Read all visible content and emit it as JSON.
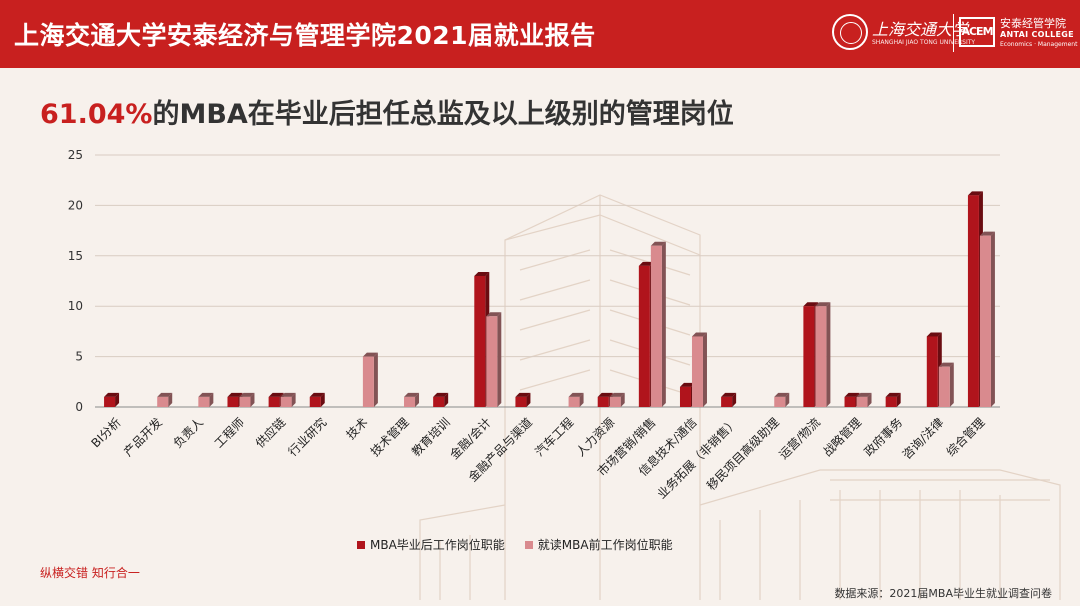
{
  "header": {
    "title": "上海交通大学安泰经济与管理学院2021届就业报告",
    "university_name": "上海交通大学",
    "university_en": "SHANGHAI JIAO TONG UNIVERSITY",
    "acem_mark": "ACEM",
    "college_cn": "安泰经管学院",
    "college_en": "ANTAI COLLEGE",
    "college_sub": "Economics · Management"
  },
  "headline": {
    "highlight": "61.04%",
    "rest": "的MBA在毕业后担任总监及以上级别的管理岗位"
  },
  "footer": {
    "slogan": "纵横交错 知行合一",
    "source": "数据来源：2021届MBA毕业生就业调查问卷"
  },
  "colors": {
    "brand_red": "#c8201f",
    "series_after": "#b0141c",
    "series_before": "#d98a8e"
  },
  "chart_data": {
    "type": "bar",
    "title": "",
    "xlabel": "",
    "ylabel": "",
    "ylim": [
      0,
      25
    ],
    "yticks": [
      0,
      5,
      10,
      15,
      20,
      25
    ],
    "grid": true,
    "legend_position": "bottom",
    "categories": [
      "BI分析",
      "产品开发",
      "负责人",
      "工程师",
      "供应链",
      "行业研究",
      "技术",
      "技术管理",
      "教育培训",
      "金融/会计",
      "金融产品与渠道",
      "汽车工程",
      "人力资源",
      "市场营销/销售",
      "信息技术/通信",
      "业务拓展（非销售）",
      "移民项目高级助理",
      "运营/物流",
      "战略管理",
      "政府事务",
      "咨询/法律",
      "综合管理"
    ],
    "series": [
      {
        "name": "MBA毕业后工作岗位职能",
        "values": [
          1,
          0,
          0,
          1,
          1,
          1,
          0,
          0,
          1,
          13,
          1,
          0,
          1,
          14,
          2,
          1,
          0,
          10,
          1,
          1,
          7,
          21
        ]
      },
      {
        "name": "就读MBA前工作岗位职能",
        "values": [
          0,
          1,
          1,
          1,
          1,
          0,
          5,
          1,
          0,
          9,
          0,
          1,
          1,
          16,
          7,
          0,
          1,
          10,
          1,
          0,
          4,
          17
        ]
      }
    ]
  }
}
